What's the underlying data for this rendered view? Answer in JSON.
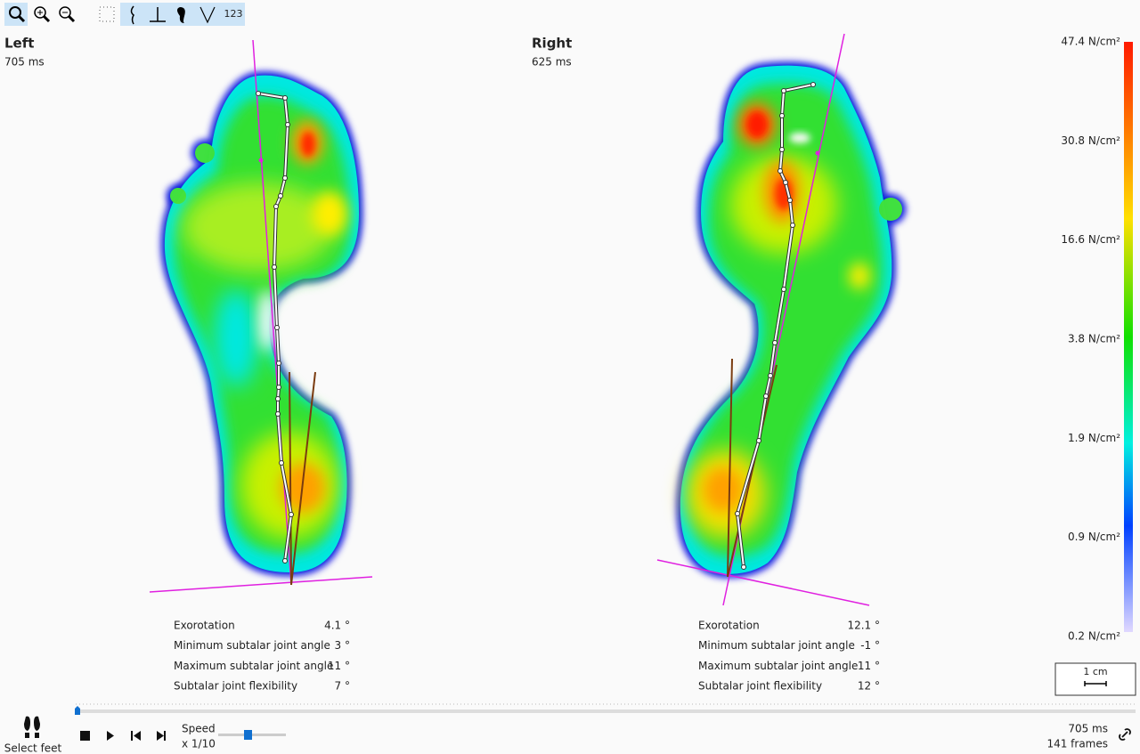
{
  "toolbar": {
    "counter_button": "123"
  },
  "feet": [
    {
      "side": "Left",
      "time": "705 ms",
      "metrics": [
        {
          "label": "Exorotation",
          "value": "4.1 °"
        },
        {
          "label": "Minimum subtalar joint angle",
          "value": "3 °"
        },
        {
          "label": "Maximum subtalar joint angle",
          "value": "11 °"
        },
        {
          "label": "Subtalar joint flexibility",
          "value": "7 °"
        }
      ]
    },
    {
      "side": "Right",
      "time": "625 ms",
      "metrics": [
        {
          "label": "Exorotation",
          "value": "12.1 °"
        },
        {
          "label": "Minimum subtalar joint angle",
          "value": "-1 °"
        },
        {
          "label": "Maximum subtalar joint angle",
          "value": "11 °"
        },
        {
          "label": "Subtalar joint flexibility",
          "value": "12 °"
        }
      ]
    }
  ],
  "legend": {
    "labels": [
      "47.4 N/cm²",
      "30.8 N/cm²",
      "16.6 N/cm²",
      "3.8 N/cm²",
      "1.9 N/cm²",
      "0.9 N/cm²",
      "0.2 N/cm²"
    ]
  },
  "scale": "1 cm",
  "footer": {
    "select_feet": "Select feet",
    "speed_label": "Speed",
    "speed_value": "x 1/10",
    "time": "705 ms",
    "frames": "141 frames"
  }
}
